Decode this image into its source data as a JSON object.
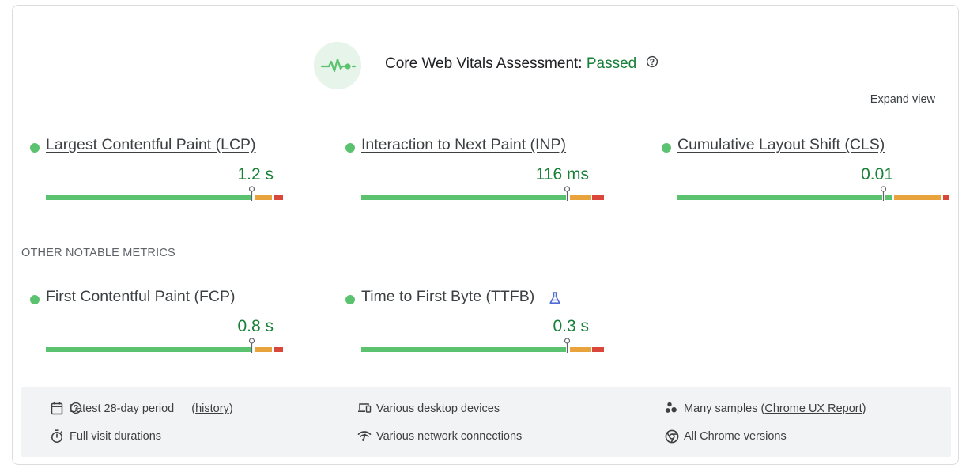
{
  "assessment": {
    "title": "Core Web Vitals Assessment: ",
    "status": "Passed",
    "icon": "vitals-pulse-icon",
    "expand_label": "Expand view"
  },
  "core_metrics": [
    {
      "name": "Largest Contentful Paint (LCP)",
      "value": "1.2 s",
      "status_color": "#5bc26f",
      "distribution": {
        "good": 0.76,
        "needs_improvement": 0.07,
        "poor": 0.04
      },
      "marker_position": 0.75
    },
    {
      "name": "Interaction to Next Paint (INP)",
      "value": "116 ms",
      "status_color": "#5bc26f",
      "distribution": {
        "good": 0.76,
        "needs_improvement": 0.08,
        "poor": 0.05
      },
      "marker_position": 0.75
    },
    {
      "name": "Cumulative Layout Shift (CLS)",
      "value": "0.01",
      "status_color": "#5bc26f",
      "distribution": {
        "good": 0.79,
        "needs_improvement": 0.18,
        "poor": 0.03
      },
      "marker_position": 0.75
    }
  ],
  "other_section_title": "OTHER NOTABLE METRICS",
  "other_metrics": [
    {
      "name": "First Contentful Paint (FCP)",
      "value": "0.8 s",
      "status_color": "#5bc26f",
      "distribution": {
        "good": 0.76,
        "needs_improvement": 0.07,
        "poor": 0.04
      },
      "marker_position": 0.75
    },
    {
      "name": "Time to First Byte (TTFB)",
      "value": "0.3 s",
      "status_color": "#5bc26f",
      "distribution": {
        "good": 0.76,
        "needs_improvement": 0.08,
        "poor": 0.05
      },
      "marker_position": 0.75,
      "badge_icon": "lab-flask-icon"
    }
  ],
  "colors": {
    "good": "#5bc26f",
    "needs_improvement": "#e8a33d",
    "poor": "#d9473b",
    "passed": "#188038"
  },
  "footer": {
    "period_label": "Latest 28-day period",
    "history_open": "(",
    "history_link": "history",
    "history_close": ")",
    "devices": "Various desktop devices",
    "samples_prefix": "Many samples (",
    "samples_link": "Chrome UX Report",
    "samples_suffix": ")",
    "durations": "Full visit durations",
    "network": "Various network connections",
    "chrome_versions": "All Chrome versions"
  }
}
